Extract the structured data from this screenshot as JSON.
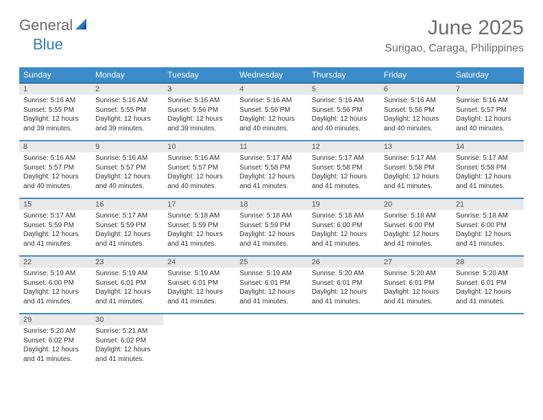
{
  "logo": {
    "text1": "General",
    "text2": "Blue"
  },
  "title": "June 2025",
  "location": "Surigao, Caraga, Philippines",
  "header_bg": "#3b8bc9",
  "header_border": "#2f6fa3",
  "row_border": "#3b8bc9",
  "daynum_bg": "#e8e8e8",
  "weekdays": [
    "Sunday",
    "Monday",
    "Tuesday",
    "Wednesday",
    "Thursday",
    "Friday",
    "Saturday"
  ],
  "weeks": [
    [
      {
        "day": "1",
        "sunrise": "Sunrise: 5:16 AM",
        "sunset": "Sunset: 5:55 PM",
        "daylight": "Daylight: 12 hours and 39 minutes."
      },
      {
        "day": "2",
        "sunrise": "Sunrise: 5:16 AM",
        "sunset": "Sunset: 5:55 PM",
        "daylight": "Daylight: 12 hours and 39 minutes."
      },
      {
        "day": "3",
        "sunrise": "Sunrise: 5:16 AM",
        "sunset": "Sunset: 5:56 PM",
        "daylight": "Daylight: 12 hours and 39 minutes."
      },
      {
        "day": "4",
        "sunrise": "Sunrise: 5:16 AM",
        "sunset": "Sunset: 5:56 PM",
        "daylight": "Daylight: 12 hours and 40 minutes."
      },
      {
        "day": "5",
        "sunrise": "Sunrise: 5:16 AM",
        "sunset": "Sunset: 5:56 PM",
        "daylight": "Daylight: 12 hours and 40 minutes."
      },
      {
        "day": "6",
        "sunrise": "Sunrise: 5:16 AM",
        "sunset": "Sunset: 5:56 PM",
        "daylight": "Daylight: 12 hours and 40 minutes."
      },
      {
        "day": "7",
        "sunrise": "Sunrise: 5:16 AM",
        "sunset": "Sunset: 5:57 PM",
        "daylight": "Daylight: 12 hours and 40 minutes."
      }
    ],
    [
      {
        "day": "8",
        "sunrise": "Sunrise: 5:16 AM",
        "sunset": "Sunset: 5:57 PM",
        "daylight": "Daylight: 12 hours and 40 minutes."
      },
      {
        "day": "9",
        "sunrise": "Sunrise: 5:16 AM",
        "sunset": "Sunset: 5:57 PM",
        "daylight": "Daylight: 12 hours and 40 minutes."
      },
      {
        "day": "10",
        "sunrise": "Sunrise: 5:16 AM",
        "sunset": "Sunset: 5:57 PM",
        "daylight": "Daylight: 12 hours and 40 minutes."
      },
      {
        "day": "11",
        "sunrise": "Sunrise: 5:17 AM",
        "sunset": "Sunset: 5:58 PM",
        "daylight": "Daylight: 12 hours and 41 minutes."
      },
      {
        "day": "12",
        "sunrise": "Sunrise: 5:17 AM",
        "sunset": "Sunset: 5:58 PM",
        "daylight": "Daylight: 12 hours and 41 minutes."
      },
      {
        "day": "13",
        "sunrise": "Sunrise: 5:17 AM",
        "sunset": "Sunset: 5:58 PM",
        "daylight": "Daylight: 12 hours and 41 minutes."
      },
      {
        "day": "14",
        "sunrise": "Sunrise: 5:17 AM",
        "sunset": "Sunset: 5:58 PM",
        "daylight": "Daylight: 12 hours and 41 minutes."
      }
    ],
    [
      {
        "day": "15",
        "sunrise": "Sunrise: 5:17 AM",
        "sunset": "Sunset: 5:59 PM",
        "daylight": "Daylight: 12 hours and 41 minutes."
      },
      {
        "day": "16",
        "sunrise": "Sunrise: 5:17 AM",
        "sunset": "Sunset: 5:59 PM",
        "daylight": "Daylight: 12 hours and 41 minutes."
      },
      {
        "day": "17",
        "sunrise": "Sunrise: 5:18 AM",
        "sunset": "Sunset: 5:59 PM",
        "daylight": "Daylight: 12 hours and 41 minutes."
      },
      {
        "day": "18",
        "sunrise": "Sunrise: 5:18 AM",
        "sunset": "Sunset: 5:59 PM",
        "daylight": "Daylight: 12 hours and 41 minutes."
      },
      {
        "day": "19",
        "sunrise": "Sunrise: 5:18 AM",
        "sunset": "Sunset: 6:00 PM",
        "daylight": "Daylight: 12 hours and 41 minutes."
      },
      {
        "day": "20",
        "sunrise": "Sunrise: 5:18 AM",
        "sunset": "Sunset: 6:00 PM",
        "daylight": "Daylight: 12 hours and 41 minutes."
      },
      {
        "day": "21",
        "sunrise": "Sunrise: 5:18 AM",
        "sunset": "Sunset: 6:00 PM",
        "daylight": "Daylight: 12 hours and 41 minutes."
      }
    ],
    [
      {
        "day": "22",
        "sunrise": "Sunrise: 5:19 AM",
        "sunset": "Sunset: 6:00 PM",
        "daylight": "Daylight: 12 hours and 41 minutes."
      },
      {
        "day": "23",
        "sunrise": "Sunrise: 5:19 AM",
        "sunset": "Sunset: 6:01 PM",
        "daylight": "Daylight: 12 hours and 41 minutes."
      },
      {
        "day": "24",
        "sunrise": "Sunrise: 5:19 AM",
        "sunset": "Sunset: 6:01 PM",
        "daylight": "Daylight: 12 hours and 41 minutes."
      },
      {
        "day": "25",
        "sunrise": "Sunrise: 5:19 AM",
        "sunset": "Sunset: 6:01 PM",
        "daylight": "Daylight: 12 hours and 41 minutes."
      },
      {
        "day": "26",
        "sunrise": "Sunrise: 5:20 AM",
        "sunset": "Sunset: 6:01 PM",
        "daylight": "Daylight: 12 hours and 41 minutes."
      },
      {
        "day": "27",
        "sunrise": "Sunrise: 5:20 AM",
        "sunset": "Sunset: 6:01 PM",
        "daylight": "Daylight: 12 hours and 41 minutes."
      },
      {
        "day": "28",
        "sunrise": "Sunrise: 5:20 AM",
        "sunset": "Sunset: 6:01 PM",
        "daylight": "Daylight: 12 hours and 41 minutes."
      }
    ],
    [
      {
        "day": "29",
        "sunrise": "Sunrise: 5:20 AM",
        "sunset": "Sunset: 6:02 PM",
        "daylight": "Daylight: 12 hours and 41 minutes."
      },
      {
        "day": "30",
        "sunrise": "Sunrise: 5:21 AM",
        "sunset": "Sunset: 6:02 PM",
        "daylight": "Daylight: 12 hours and 41 minutes."
      },
      null,
      null,
      null,
      null,
      null
    ]
  ]
}
